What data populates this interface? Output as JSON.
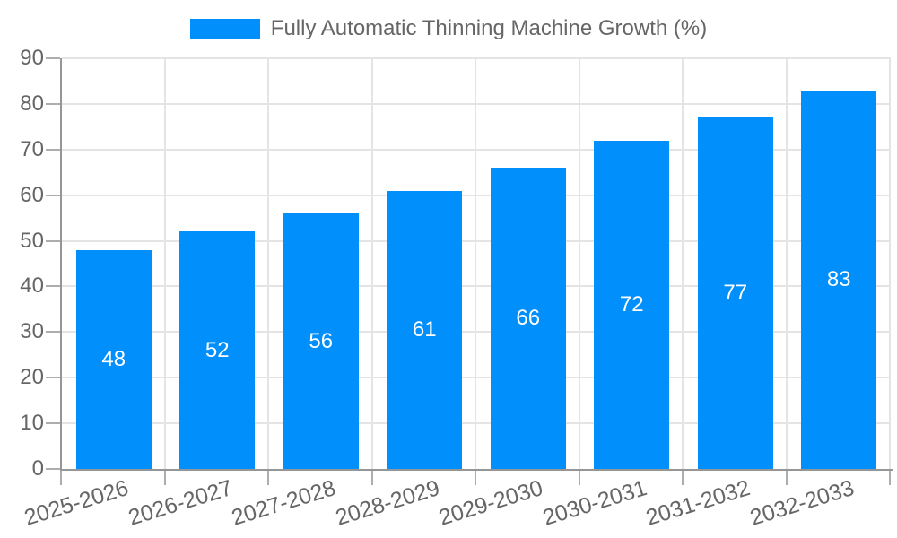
{
  "legend": {
    "label": "Fully Automatic Thinning Machine Growth (%)"
  },
  "chart_data": {
    "type": "bar",
    "title": "Fully Automatic Thinning Machine Growth (%)",
    "categories": [
      "2025-2026",
      "2026-2027",
      "2027-2028",
      "2028-2029",
      "2029-2030",
      "2030-2031",
      "2031-2032",
      "2032-2033"
    ],
    "values": [
      48,
      52,
      56,
      61,
      66,
      72,
      77,
      83
    ],
    "xlabel": "",
    "ylabel": "",
    "ylim": [
      0,
      90
    ],
    "ytick_step": 10,
    "yticks": [
      0,
      10,
      20,
      30,
      40,
      50,
      60,
      70,
      80,
      90
    ],
    "grid": true,
    "legend_position": "top",
    "data_labels": "inside-center",
    "x_label_rotation_deg": -17,
    "colors": {
      "bar": "#008FFB",
      "data_label": "#FFFFFF",
      "axis_text": "#666666",
      "grid_line": "#E4E4E4",
      "axis_line": "#969696",
      "tick_mark": "#ADADAD",
      "background": "#FFFFFF"
    }
  }
}
